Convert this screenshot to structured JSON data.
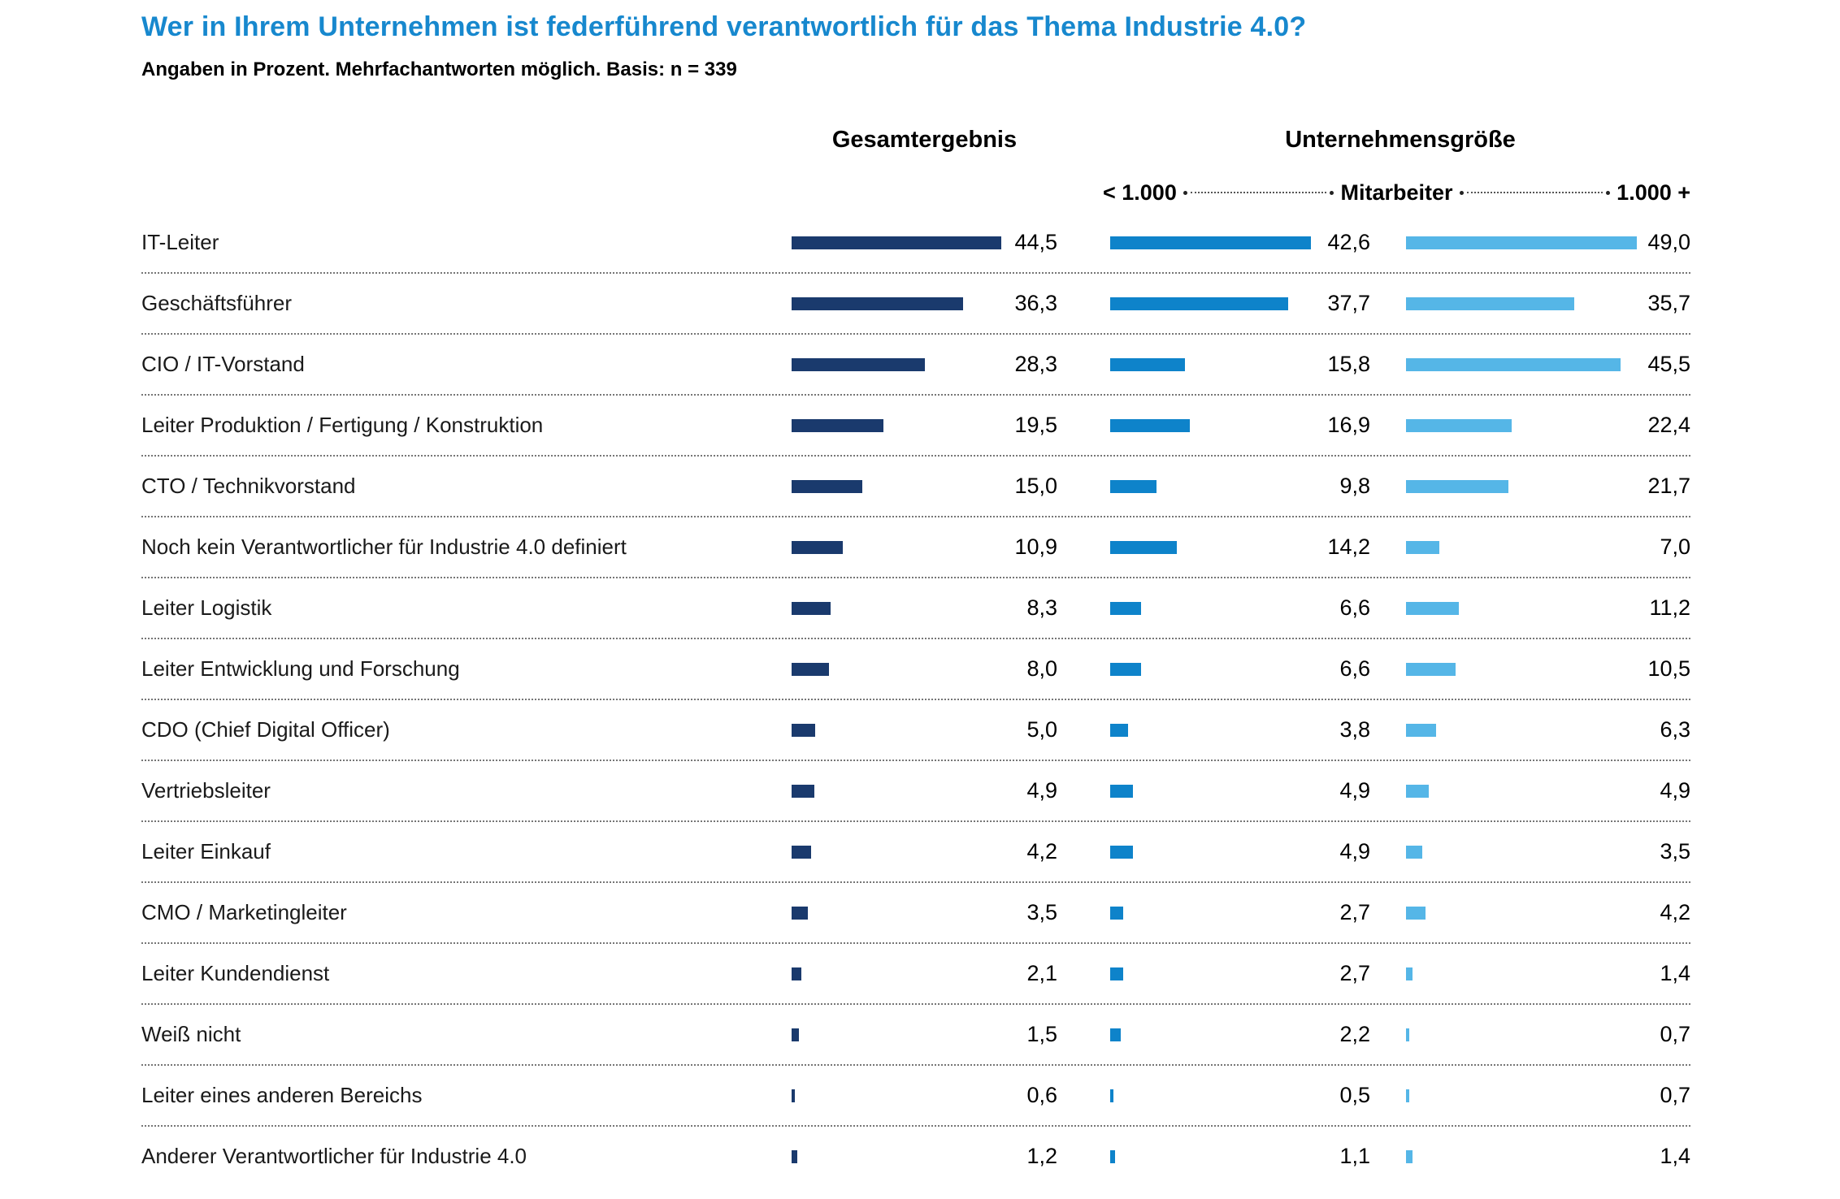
{
  "title": "Wer in Ihrem Unternehmen ist federführend verantwortlich für das Thema Industrie 4.0?",
  "subtitle": "Angaben in Prozent. Mehrfachantworten möglich. Basis: n = 339",
  "columns": {
    "overall_header": "Gesamtergebnis",
    "group_header": "Unternehmensgröße",
    "sub_left": "< 1.000",
    "sub_mid": "Mitarbeiter",
    "sub_right": "1.000 +"
  },
  "colors": {
    "title": "#1788ce",
    "overall": "#1a3a6d",
    "small_companies": "#0e83ca",
    "large_companies": "#55b6e7"
  },
  "chart_data": {
    "type": "bar",
    "orientation": "horizontal",
    "unit": "percent",
    "decimal_separator": ",",
    "xlim": [
      0,
      50
    ],
    "grid": false,
    "legend_position": "column-headers",
    "categories": [
      "IT-Leiter",
      "Geschäftsführer",
      "CIO / IT-Vorstand",
      "Leiter Produktion / Fertigung / Konstruktion",
      "CTO / Technikvorstand",
      "Noch kein Verantwortlicher für Industrie 4.0 definiert",
      "Leiter Logistik",
      "Leiter Entwicklung und Forschung",
      "CDO (Chief Digital Officer)",
      "Vertriebsleiter",
      "Leiter Einkauf",
      "CMO / Marketingleiter",
      "Leiter Kundendienst",
      "Weiß nicht",
      "Leiter eines anderen Bereichs",
      "Anderer Verantwortlicher für Industrie 4.0"
    ],
    "series": [
      {
        "name": "Gesamtergebnis",
        "values": [
          44.5,
          36.3,
          28.3,
          19.5,
          15.0,
          10.9,
          8.3,
          8.0,
          5.0,
          4.9,
          4.2,
          3.5,
          2.1,
          1.5,
          0.6,
          1.2
        ]
      },
      {
        "name": "< 1.000 Mitarbeiter",
        "values": [
          42.6,
          37.7,
          15.8,
          16.9,
          9.8,
          14.2,
          6.6,
          6.6,
          3.8,
          4.9,
          4.9,
          2.7,
          2.7,
          2.2,
          0.5,
          1.1
        ]
      },
      {
        "name": "1.000 + Mitarbeiter",
        "values": [
          49.0,
          35.7,
          45.5,
          22.4,
          21.7,
          7.0,
          11.2,
          10.5,
          6.3,
          4.9,
          3.5,
          4.2,
          1.4,
          0.7,
          0.7,
          1.4
        ]
      }
    ]
  }
}
